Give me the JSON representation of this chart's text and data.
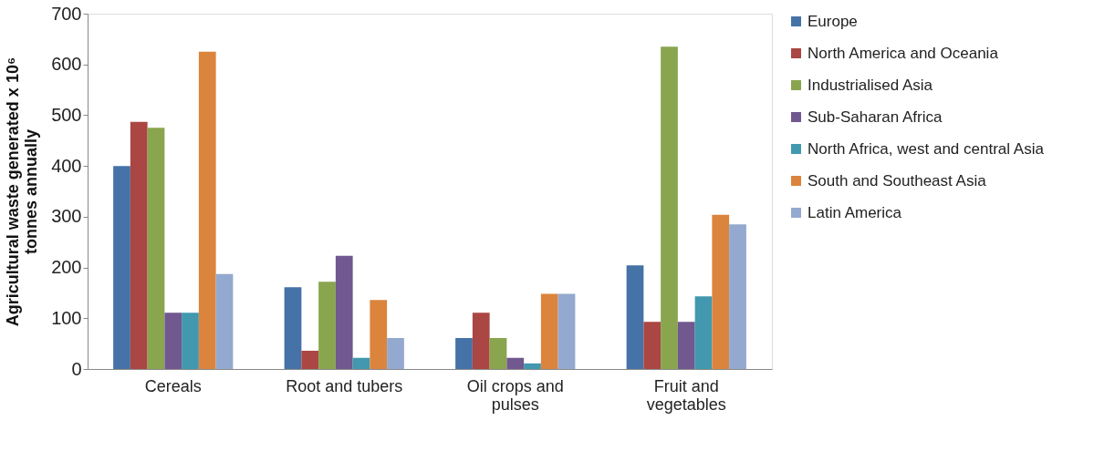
{
  "chart_data": {
    "type": "bar",
    "ylabel": "Agricultural waste generated x 10⁶ tonnes annually",
    "categories": [
      "Cereals",
      "Root and tubers",
      "Oil crops and pulses",
      "Fruit and vegetables"
    ],
    "series": [
      {
        "name": "Europe",
        "color": "#4572a7",
        "values": [
          400,
          161,
          61,
          204
        ]
      },
      {
        "name": "North America and Oceania",
        "color": "#aa4643",
        "values": [
          487,
          36,
          111,
          93
        ]
      },
      {
        "name": "Industrialised Asia",
        "color": "#89a54e",
        "values": [
          475,
          172,
          61,
          635
        ]
      },
      {
        "name": "Sub-Saharan Africa",
        "color": "#71588f",
        "values": [
          111,
          223,
          22,
          93
        ]
      },
      {
        "name": "North Africa, west and central Asia",
        "color": "#4198af",
        "values": [
          111,
          22,
          11,
          143
        ]
      },
      {
        "name": "South and Southeast Asia",
        "color": "#db843d",
        "values": [
          625,
          136,
          148,
          304
        ]
      },
      {
        "name": "Latin America",
        "color": "#93a9cf",
        "values": [
          187,
          61,
          148,
          285
        ]
      }
    ],
    "ylim": [
      0,
      700
    ],
    "yticks": [
      0,
      100,
      200,
      300,
      400,
      500,
      600,
      700
    ],
    "grid": false,
    "legend": "right"
  }
}
